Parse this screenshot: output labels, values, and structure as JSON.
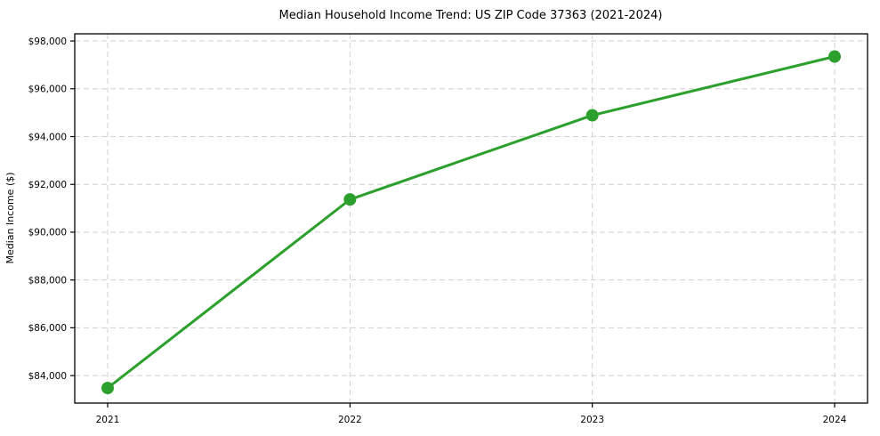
{
  "chart_data": {
    "type": "line",
    "title": "Median Household Income Trend: US ZIP Code 37363 (2021-2024)",
    "xlabel": "",
    "ylabel": "Median Income ($)",
    "categories": [
      "2021",
      "2022",
      "2023",
      "2024"
    ],
    "series": [
      {
        "name": "Median Household Income",
        "values": [
          83480,
          91370,
          94890,
          97350
        ]
      }
    ],
    "y_ticks": [
      84000,
      86000,
      88000,
      90000,
      92000,
      94000,
      96000,
      98000
    ],
    "y_tick_labels": [
      "$84,000",
      "$86,000",
      "$88,000",
      "$90,000",
      "$92,000",
      "$94,000",
      "$96,000",
      "$98,000"
    ],
    "ylim": [
      82850,
      98300
    ],
    "grid": true,
    "grid_style": "dashed",
    "legend_position": "none",
    "line_color": "#2ca02c",
    "marker_color": "#2ca02c",
    "grid_color": "#d0d0d0",
    "axis_color": "#000000",
    "text_color": "#000000",
    "background_color": "#ffffff"
  }
}
